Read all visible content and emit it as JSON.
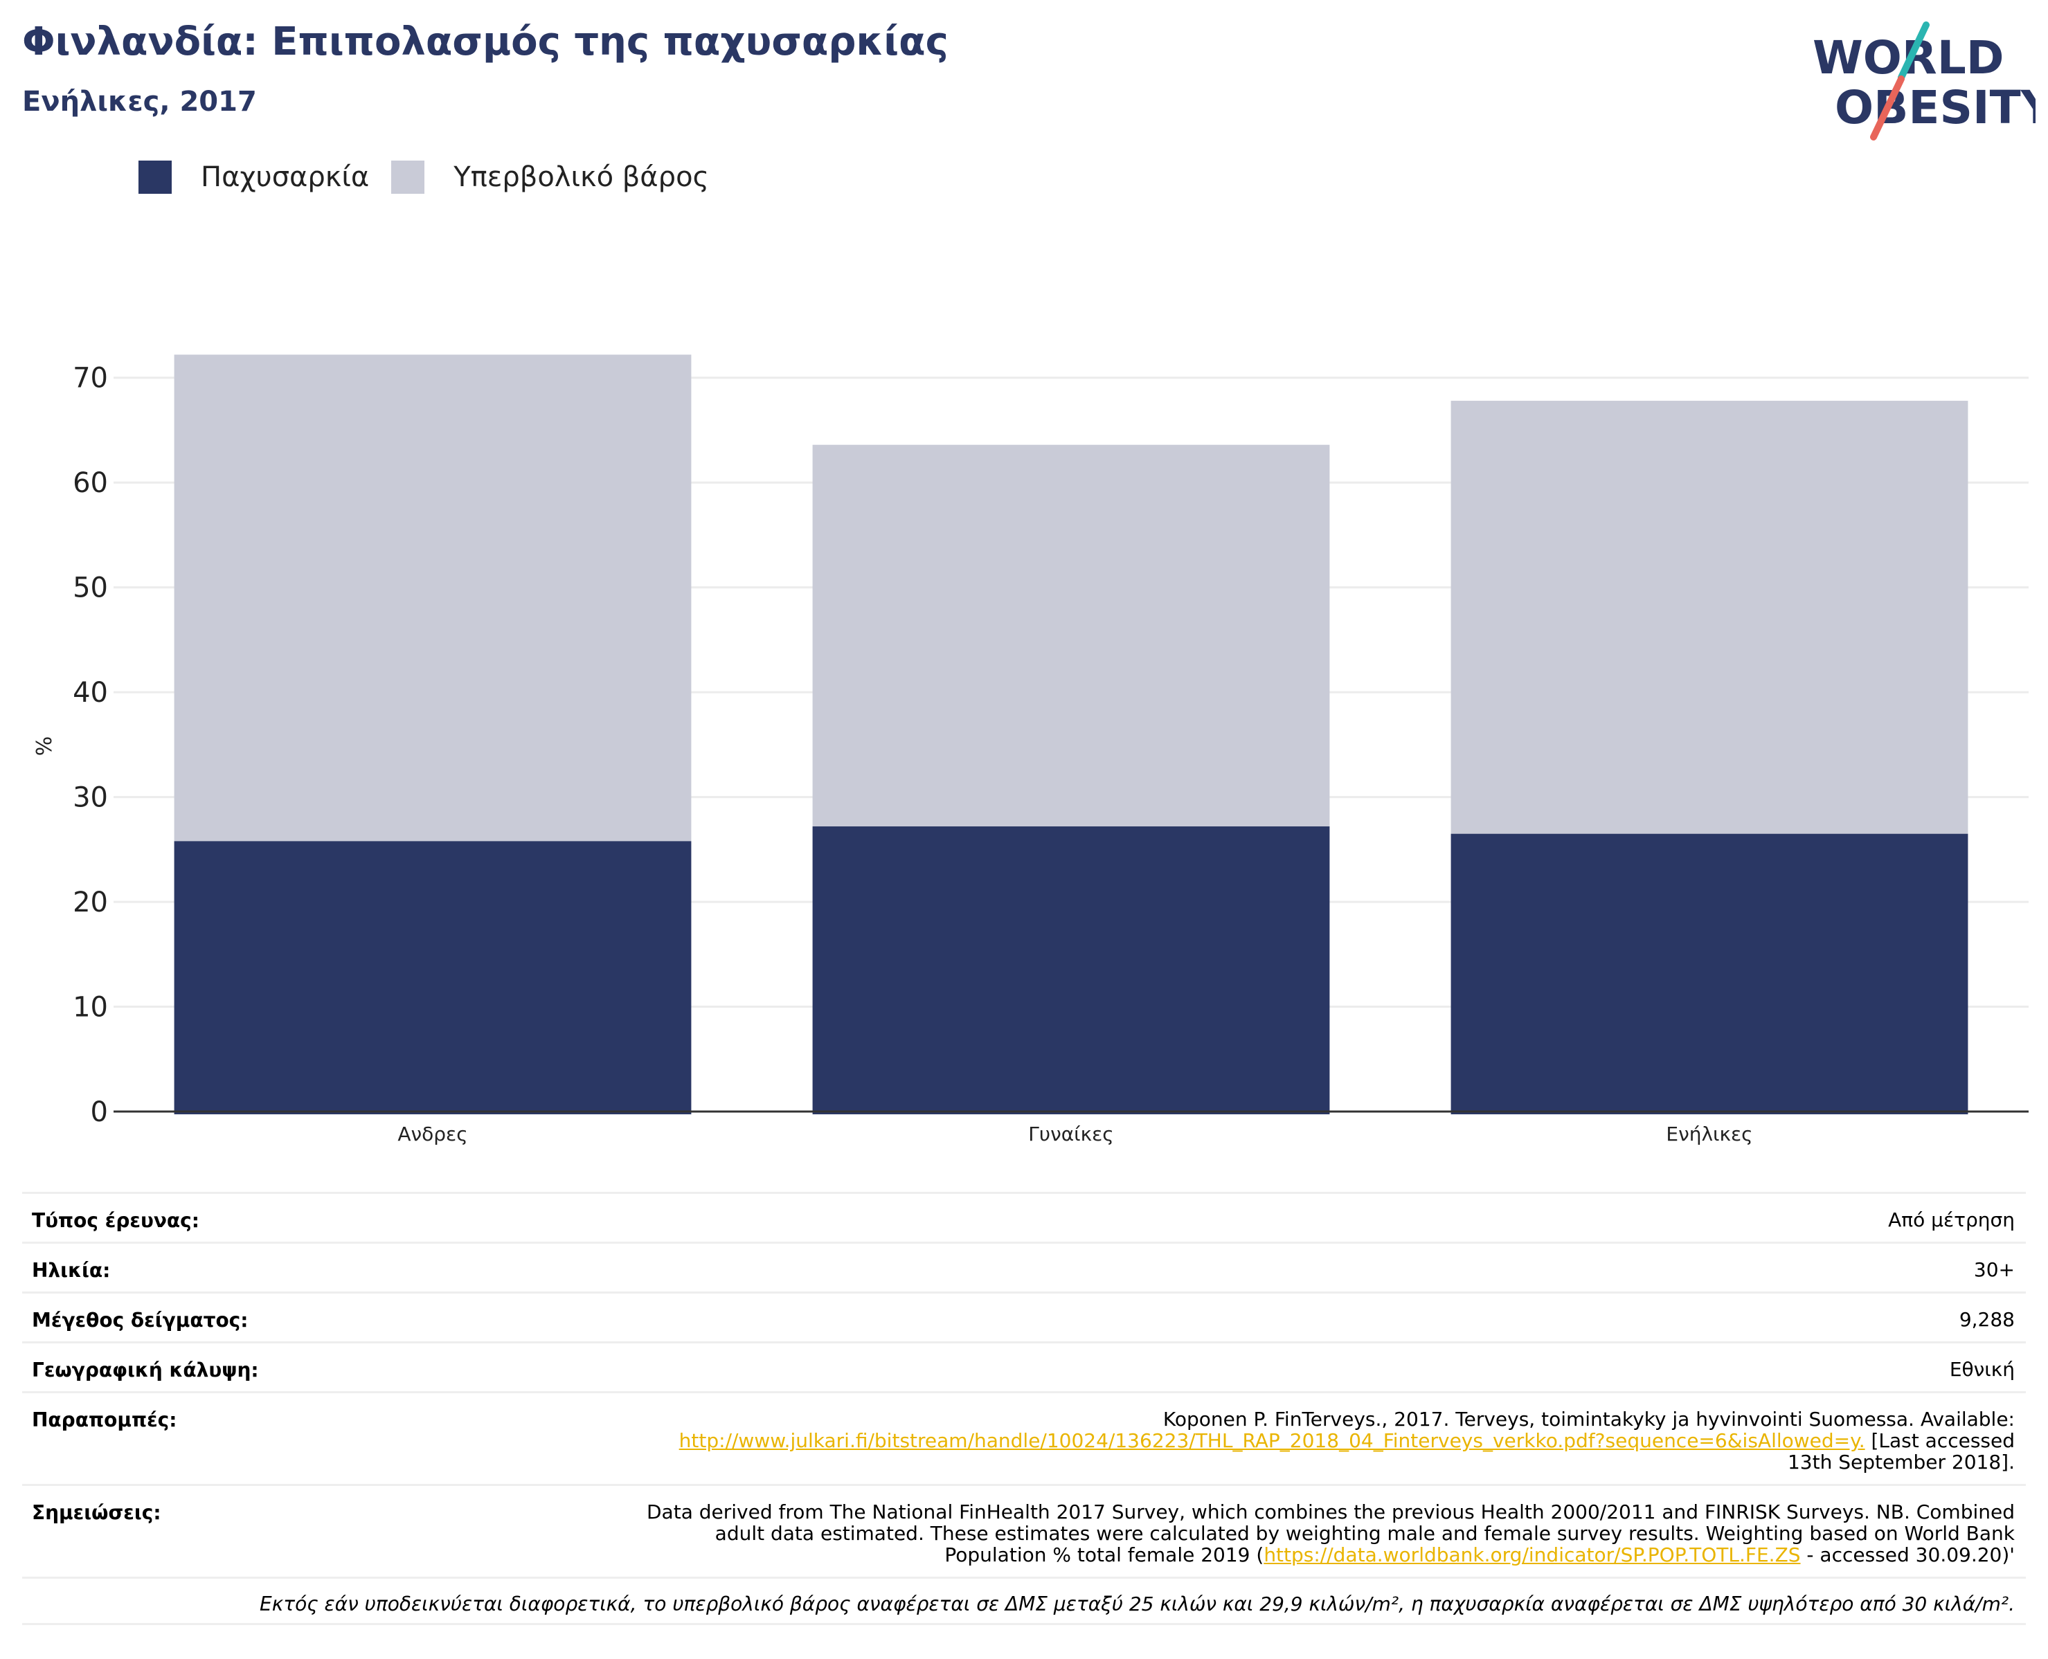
{
  "header": {
    "title": "Φινλανδία: Επιπολασμός της παχυσαρκίας",
    "subtitle": "Ενήλικες, 2017"
  },
  "logo": {
    "line1": "WORLD",
    "line2": "OBESITY",
    "icon": "world-obesity-logo"
  },
  "legend": [
    {
      "label": "Παχυσαρκία",
      "color": "#2a3764"
    },
    {
      "label": "Υπερβολικό βάρος",
      "color": "#c9cbd7"
    }
  ],
  "chart_data": {
    "type": "bar",
    "stacked": true,
    "categories": [
      "Ανδρες",
      "Γυναίκες",
      "Ενήλικες"
    ],
    "series": [
      {
        "name": "Παχυσαρκία",
        "values": [
          25.8,
          27.2,
          26.5
        ],
        "color": "#2a3764"
      },
      {
        "name": "Υπερβολικό βάρος",
        "values": [
          46.4,
          36.4,
          41.3
        ],
        "color": "#c9cbd7"
      }
    ],
    "ylabel": "%",
    "ylim": [
      0,
      75
    ],
    "yticks": [
      0,
      10,
      20,
      30,
      40,
      50,
      60,
      70
    ],
    "grid": true,
    "legend_position": "top-left"
  },
  "meta": {
    "survey_type": {
      "label": "Τύπος έρευνας:",
      "value": "Από μέτρηση"
    },
    "age": {
      "label": "Ηλικία:",
      "value": "30+"
    },
    "sample_size": {
      "label": "Μέγεθος δείγματος:",
      "value": "9,288"
    },
    "coverage": {
      "label": "Γεωγραφική κάλυψη:",
      "value": "Εθνική"
    },
    "references": {
      "label": "Παραπομπές:",
      "text1": "Koponen P. FinTerveys., 2017. Terveys, toimintakyky ja hyvinvointi Suomessa. Available:",
      "link": "http://www.julkari.fi/bitstream/handle/10024/136223/THL_RAP_2018_04_Finterveys_verkko.pdf?sequence=6&isAllowed=y.",
      "text2": " [Last accessed",
      "text3": "13th September 2018]."
    },
    "notes": {
      "label": "Σημειώσεις:",
      "text1": "Data derived from The National FinHealth 2017 Survey, which combines the previous Health 2000/2011 and FINRISK Surveys. NB. Combined",
      "text2": "adult data estimated. These estimates were calculated by weighting male and female survey results. Weighting based on World Bank",
      "text3": "Population % total female 2019 (",
      "link": "https://data.worldbank.org/indicator/SP.POP.TOTL.FE.ZS",
      "text4": " - accessed 30.09.20)'"
    },
    "footnote": "Εκτός εάν υποδεικνύεται διαφορετικά, το υπερβολικό βάρος αναφέρεται σε ΔΜΣ μεταξύ 25 κιλών και 29,9 κιλών/m², η παχυσαρκία αναφέρεται σε ΔΜΣ υψηλότερο από 30 κιλά/m²."
  }
}
